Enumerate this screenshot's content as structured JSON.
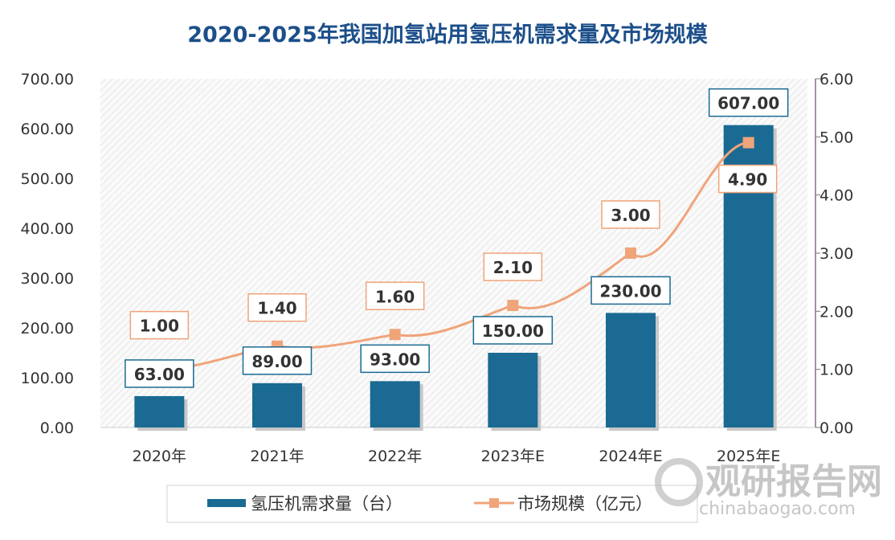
{
  "chart_data": {
    "type": "bar+line",
    "title": "2020-2025年我国加氢站用氢压机需求量及市场规模",
    "categories": [
      "2020年",
      "2021年",
      "2022年",
      "2023年E",
      "2024年E",
      "2025年E"
    ],
    "series": [
      {
        "name": "氢压机需求量（台）",
        "type": "bar",
        "axis": "left",
        "values": [
          63,
          89,
          93,
          150,
          230,
          607
        ],
        "labels": [
          "63.00",
          "89.00",
          "93.00",
          "150.00",
          "230.00",
          "607.00"
        ],
        "color": "#1a6a93"
      },
      {
        "name": "市场规模（亿元）",
        "type": "line",
        "axis": "right",
        "values": [
          1.0,
          1.4,
          1.6,
          2.1,
          3.0,
          4.9
        ],
        "labels": [
          "1.00",
          "1.40",
          "1.60",
          "2.10",
          "3.00",
          "4.90"
        ],
        "color": "#f0a47a"
      }
    ],
    "left_axis": {
      "range": [
        0,
        700
      ],
      "ticks": [
        "0.00",
        "100.00",
        "200.00",
        "300.00",
        "400.00",
        "500.00",
        "600.00",
        "700.00"
      ]
    },
    "right_axis": {
      "range": [
        0,
        6
      ],
      "ticks": [
        "0.00",
        "1.00",
        "2.00",
        "3.00",
        "4.00",
        "5.00",
        "6.00"
      ]
    },
    "grid": false,
    "legend_position": "bottom",
    "title_color": "#1c4f8a"
  },
  "watermark": {
    "text": "观研报告网",
    "url_text": "chinabaogao.com"
  }
}
